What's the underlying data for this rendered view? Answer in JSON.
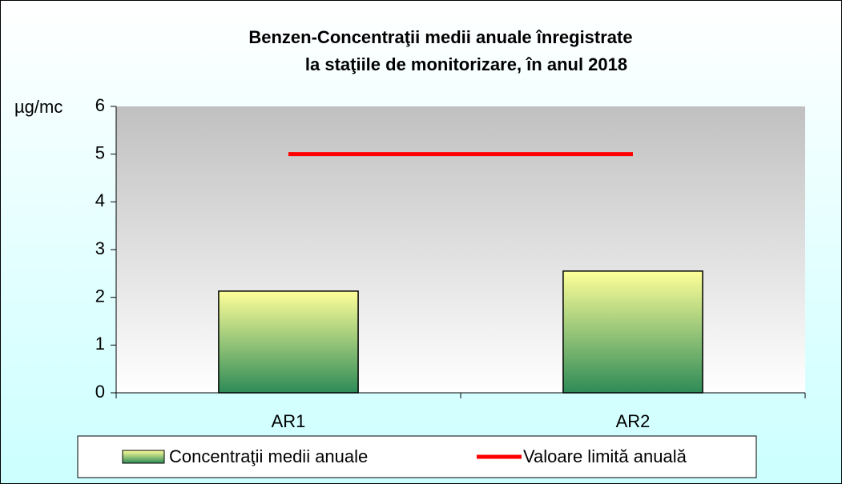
{
  "chart_data": {
    "type": "bar",
    "title": [
      "Benzen-Concentraţii medii anuale  înregistrate",
      "la staţiile de monitorizare, în anul 2018"
    ],
    "y_axis_label": "µg/mc",
    "categories": [
      "AR1",
      "AR2"
    ],
    "series": [
      {
        "name": "Concentraţii medii anuale",
        "type": "bar",
        "color": "#ffff99",
        "color_bottom": "#2e8b57",
        "values": [
          2.13,
          2.55
        ]
      },
      {
        "name": "Valoare limită anuală",
        "type": "line",
        "color": "#ff0000",
        "values": [
          5,
          5
        ]
      }
    ],
    "ylim": [
      0,
      6
    ],
    "yticks": [
      0,
      1,
      2,
      3,
      4,
      5,
      6
    ],
    "grid": false,
    "legend": "bottom"
  }
}
